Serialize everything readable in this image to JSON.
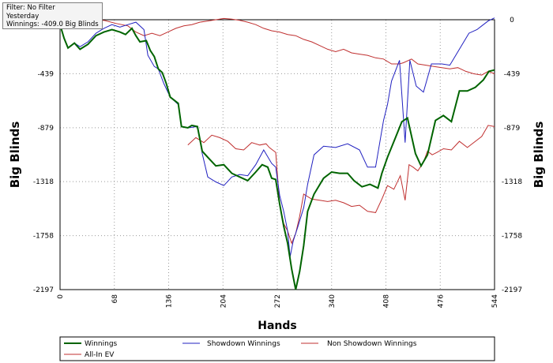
{
  "info_box": {
    "filter": "Filter: No Filter",
    "period": "Yesterday",
    "winnings": "Winnings: -409.0 Big Blinds"
  },
  "chart_data": {
    "type": "line",
    "xlabel": "Hands",
    "ylabel_left": "Big Blinds",
    "ylabel_right": "Big Blinds",
    "xlim": [
      0,
      544
    ],
    "ylim": [
      -2197,
      0
    ],
    "x_ticks": [
      "0",
      "68",
      "136",
      "204",
      "272",
      "340",
      "408",
      "476",
      "544"
    ],
    "y_ticks": [
      "0",
      "-439",
      "-879",
      "-1318",
      "-1758",
      "-2197"
    ],
    "grid": true,
    "legend_position": "bottom",
    "series": [
      {
        "name": "Winnings",
        "color": "#006400",
        "points": [
          [
            0,
            -40
          ],
          [
            5,
            -150
          ],
          [
            10,
            -230
          ],
          [
            18,
            -190
          ],
          [
            25,
            -240
          ],
          [
            35,
            -200
          ],
          [
            45,
            -130
          ],
          [
            55,
            -100
          ],
          [
            65,
            -80
          ],
          [
            75,
            -100
          ],
          [
            82,
            -120
          ],
          [
            90,
            -70
          ],
          [
            95,
            -130
          ],
          [
            100,
            -180
          ],
          [
            108,
            -170
          ],
          [
            113,
            -250
          ],
          [
            118,
            -300
          ],
          [
            123,
            -400
          ],
          [
            128,
            -430
          ],
          [
            133,
            -520
          ],
          [
            138,
            -630
          ],
          [
            148,
            -680
          ],
          [
            152,
            -870
          ],
          [
            160,
            -880
          ],
          [
            165,
            -860
          ],
          [
            172,
            -870
          ],
          [
            178,
            -1070
          ],
          [
            185,
            -1120
          ],
          [
            195,
            -1190
          ],
          [
            205,
            -1180
          ],
          [
            215,
            -1250
          ],
          [
            225,
            -1280
          ],
          [
            235,
            -1310
          ],
          [
            245,
            -1240
          ],
          [
            253,
            -1180
          ],
          [
            260,
            -1200
          ],
          [
            265,
            -1290
          ],
          [
            270,
            -1300
          ],
          [
            275,
            -1500
          ],
          [
            280,
            -1680
          ],
          [
            285,
            -1820
          ],
          [
            290,
            -2030
          ],
          [
            295,
            -2197
          ],
          [
            300,
            -2050
          ],
          [
            305,
            -1840
          ],
          [
            310,
            -1560
          ],
          [
            318,
            -1420
          ],
          [
            330,
            -1290
          ],
          [
            340,
            -1240
          ],
          [
            350,
            -1250
          ],
          [
            360,
            -1250
          ],
          [
            368,
            -1310
          ],
          [
            378,
            -1360
          ],
          [
            388,
            -1340
          ],
          [
            398,
            -1370
          ],
          [
            403,
            -1250
          ],
          [
            410,
            -1120
          ],
          [
            420,
            -960
          ],
          [
            428,
            -830
          ],
          [
            435,
            -800
          ],
          [
            445,
            -1090
          ],
          [
            452,
            -1190
          ],
          [
            460,
            -1100
          ],
          [
            470,
            -820
          ],
          [
            480,
            -780
          ],
          [
            490,
            -830
          ],
          [
            500,
            -580
          ],
          [
            510,
            -580
          ],
          [
            520,
            -550
          ],
          [
            530,
            -490
          ],
          [
            537,
            -420
          ],
          [
            544,
            -409
          ]
        ]
      },
      {
        "name": "Showdown Winnings",
        "color": "#2020c0",
        "points": [
          [
            0,
            -40
          ],
          [
            5,
            -150
          ],
          [
            10,
            -230
          ],
          [
            18,
            -190
          ],
          [
            25,
            -220
          ],
          [
            35,
            -180
          ],
          [
            45,
            -110
          ],
          [
            55,
            -70
          ],
          [
            65,
            -40
          ],
          [
            75,
            -60
          ],
          [
            85,
            -40
          ],
          [
            95,
            -20
          ],
          [
            105,
            -80
          ],
          [
            110,
            -290
          ],
          [
            118,
            -380
          ],
          [
            123,
            -400
          ],
          [
            130,
            -520
          ],
          [
            138,
            -630
          ],
          [
            148,
            -690
          ],
          [
            152,
            -870
          ],
          [
            160,
            -880
          ],
          [
            172,
            -870
          ],
          [
            178,
            -1090
          ],
          [
            185,
            -1280
          ],
          [
            195,
            -1320
          ],
          [
            205,
            -1350
          ],
          [
            215,
            -1280
          ],
          [
            225,
            -1260
          ],
          [
            235,
            -1270
          ],
          [
            245,
            -1180
          ],
          [
            255,
            -1060
          ],
          [
            265,
            -1170
          ],
          [
            270,
            -1200
          ],
          [
            275,
            -1430
          ],
          [
            280,
            -1560
          ],
          [
            285,
            -1720
          ],
          [
            288,
            -1930
          ],
          [
            292,
            -1800
          ],
          [
            298,
            -1680
          ],
          [
            305,
            -1530
          ],
          [
            310,
            -1340
          ],
          [
            318,
            -1100
          ],
          [
            330,
            -1030
          ],
          [
            345,
            -1040
          ],
          [
            360,
            -1010
          ],
          [
            375,
            -1060
          ],
          [
            385,
            -1200
          ],
          [
            395,
            -1200
          ],
          [
            405,
            -820
          ],
          [
            410,
            -690
          ],
          [
            415,
            -500
          ],
          [
            425,
            -330
          ],
          [
            432,
            -1000
          ],
          [
            438,
            -330
          ],
          [
            446,
            -540
          ],
          [
            455,
            -590
          ],
          [
            465,
            -360
          ],
          [
            478,
            -360
          ],
          [
            488,
            -370
          ],
          [
            500,
            -240
          ],
          [
            512,
            -110
          ],
          [
            522,
            -80
          ],
          [
            528,
            -50
          ],
          [
            536,
            -10
          ],
          [
            544,
            15
          ]
        ]
      },
      {
        "name": "Non Showdown Winnings",
        "color": "#c03030",
        "points": [
          [
            0,
            20
          ],
          [
            10,
            15
          ],
          [
            25,
            10
          ],
          [
            40,
            -10
          ],
          [
            55,
            -5
          ],
          [
            70,
            -30
          ],
          [
            85,
            -50
          ],
          [
            95,
            -100
          ],
          [
            105,
            -130
          ],
          [
            115,
            -110
          ],
          [
            125,
            -130
          ],
          [
            135,
            -100
          ],
          [
            145,
            -70
          ],
          [
            155,
            -50
          ],
          [
            165,
            -40
          ],
          [
            175,
            -20
          ],
          [
            185,
            -10
          ],
          [
            195,
            0
          ],
          [
            205,
            10
          ],
          [
            215,
            5
          ],
          [
            225,
            -5
          ],
          [
            235,
            -20
          ],
          [
            245,
            -40
          ],
          [
            255,
            -70
          ],
          [
            265,
            -90
          ],
          [
            275,
            -100
          ],
          [
            285,
            -120
          ],
          [
            295,
            -130
          ],
          [
            305,
            -160
          ],
          [
            315,
            -180
          ],
          [
            325,
            -210
          ],
          [
            335,
            -240
          ],
          [
            345,
            -260
          ],
          [
            355,
            -240
          ],
          [
            365,
            -270
          ],
          [
            375,
            -280
          ],
          [
            385,
            -290
          ],
          [
            395,
            -310
          ],
          [
            405,
            -320
          ],
          [
            415,
            -360
          ],
          [
            425,
            -360
          ],
          [
            430,
            -350
          ],
          [
            440,
            -320
          ],
          [
            448,
            -360
          ],
          [
            458,
            -370
          ],
          [
            468,
            -380
          ],
          [
            478,
            -390
          ],
          [
            488,
            -400
          ],
          [
            498,
            -390
          ],
          [
            508,
            -420
          ],
          [
            518,
            -440
          ],
          [
            528,
            -450
          ],
          [
            536,
            -420
          ],
          [
            544,
            -440
          ]
        ]
      },
      {
        "name": "All-In EV",
        "color": "#c03030",
        "points": [
          [
            160,
            -1020
          ],
          [
            170,
            -960
          ],
          [
            180,
            -1000
          ],
          [
            190,
            -940
          ],
          [
            200,
            -960
          ],
          [
            210,
            -990
          ],
          [
            220,
            -1050
          ],
          [
            230,
            -1060
          ],
          [
            240,
            -1000
          ],
          [
            250,
            -1020
          ],
          [
            258,
            -1010
          ],
          [
            262,
            -1040
          ],
          [
            270,
            -1080
          ],
          [
            275,
            -1500
          ],
          [
            280,
            -1660
          ],
          [
            285,
            -1720
          ],
          [
            290,
            -1820
          ],
          [
            295,
            -1740
          ],
          [
            300,
            -1600
          ],
          [
            305,
            -1420
          ],
          [
            315,
            -1460
          ],
          [
            325,
            -1470
          ],
          [
            335,
            -1480
          ],
          [
            345,
            -1470
          ],
          [
            355,
            -1490
          ],
          [
            365,
            -1520
          ],
          [
            375,
            -1510
          ],
          [
            385,
            -1560
          ],
          [
            395,
            -1570
          ],
          [
            403,
            -1460
          ],
          [
            410,
            -1350
          ],
          [
            418,
            -1380
          ],
          [
            426,
            -1270
          ],
          [
            432,
            -1470
          ],
          [
            437,
            -1180
          ],
          [
            442,
            -1200
          ],
          [
            448,
            -1230
          ],
          [
            455,
            -1160
          ],
          [
            460,
            -1070
          ],
          [
            466,
            -1100
          ],
          [
            472,
            -1080
          ],
          [
            480,
            -1050
          ],
          [
            490,
            -1060
          ],
          [
            500,
            -990
          ],
          [
            510,
            -1040
          ],
          [
            520,
            -990
          ],
          [
            528,
            -950
          ],
          [
            536,
            -860
          ],
          [
            544,
            -870
          ]
        ]
      }
    ],
    "legend": [
      {
        "label": "Winnings",
        "color": "#006400"
      },
      {
        "label": "Showdown Winnings",
        "color": "#2020c0"
      },
      {
        "label": "Non Showdown Winnings",
        "color": "#c03030"
      },
      {
        "label": "All-In EV",
        "color": "#c03030"
      }
    ]
  }
}
